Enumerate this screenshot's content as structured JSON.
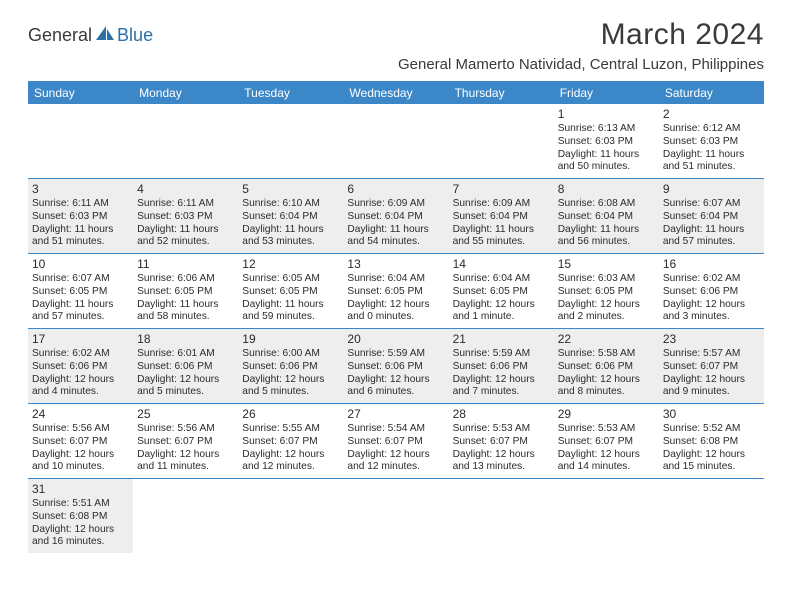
{
  "logo": {
    "text1": "General",
    "text2": "Blue"
  },
  "title": "March 2024",
  "location": "General Mamerto Natividad, Central Luzon, Philippines",
  "header_bg": "#3c87c7",
  "shade_bg": "#eeeeee",
  "border_color": "#3c87c7",
  "weekdays": [
    "Sunday",
    "Monday",
    "Tuesday",
    "Wednesday",
    "Thursday",
    "Friday",
    "Saturday"
  ],
  "weeks": [
    [
      {
        "blank": true
      },
      {
        "blank": true
      },
      {
        "blank": true
      },
      {
        "blank": true
      },
      {
        "blank": true
      },
      {
        "day": "1",
        "sunrise": "Sunrise: 6:13 AM",
        "sunset": "Sunset: 6:03 PM",
        "daylight": "Daylight: 11 hours and 50 minutes."
      },
      {
        "day": "2",
        "sunrise": "Sunrise: 6:12 AM",
        "sunset": "Sunset: 6:03 PM",
        "daylight": "Daylight: 11 hours and 51 minutes."
      }
    ],
    [
      {
        "day": "3",
        "sunrise": "Sunrise: 6:11 AM",
        "sunset": "Sunset: 6:03 PM",
        "daylight": "Daylight: 11 hours and 51 minutes.",
        "shade": true
      },
      {
        "day": "4",
        "sunrise": "Sunrise: 6:11 AM",
        "sunset": "Sunset: 6:03 PM",
        "daylight": "Daylight: 11 hours and 52 minutes.",
        "shade": true
      },
      {
        "day": "5",
        "sunrise": "Sunrise: 6:10 AM",
        "sunset": "Sunset: 6:04 PM",
        "daylight": "Daylight: 11 hours and 53 minutes.",
        "shade": true
      },
      {
        "day": "6",
        "sunrise": "Sunrise: 6:09 AM",
        "sunset": "Sunset: 6:04 PM",
        "daylight": "Daylight: 11 hours and 54 minutes.",
        "shade": true
      },
      {
        "day": "7",
        "sunrise": "Sunrise: 6:09 AM",
        "sunset": "Sunset: 6:04 PM",
        "daylight": "Daylight: 11 hours and 55 minutes.",
        "shade": true
      },
      {
        "day": "8",
        "sunrise": "Sunrise: 6:08 AM",
        "sunset": "Sunset: 6:04 PM",
        "daylight": "Daylight: 11 hours and 56 minutes.",
        "shade": true
      },
      {
        "day": "9",
        "sunrise": "Sunrise: 6:07 AM",
        "sunset": "Sunset: 6:04 PM",
        "daylight": "Daylight: 11 hours and 57 minutes.",
        "shade": true
      }
    ],
    [
      {
        "day": "10",
        "sunrise": "Sunrise: 6:07 AM",
        "sunset": "Sunset: 6:05 PM",
        "daylight": "Daylight: 11 hours and 57 minutes."
      },
      {
        "day": "11",
        "sunrise": "Sunrise: 6:06 AM",
        "sunset": "Sunset: 6:05 PM",
        "daylight": "Daylight: 11 hours and 58 minutes."
      },
      {
        "day": "12",
        "sunrise": "Sunrise: 6:05 AM",
        "sunset": "Sunset: 6:05 PM",
        "daylight": "Daylight: 11 hours and 59 minutes."
      },
      {
        "day": "13",
        "sunrise": "Sunrise: 6:04 AM",
        "sunset": "Sunset: 6:05 PM",
        "daylight": "Daylight: 12 hours and 0 minutes."
      },
      {
        "day": "14",
        "sunrise": "Sunrise: 6:04 AM",
        "sunset": "Sunset: 6:05 PM",
        "daylight": "Daylight: 12 hours and 1 minute."
      },
      {
        "day": "15",
        "sunrise": "Sunrise: 6:03 AM",
        "sunset": "Sunset: 6:05 PM",
        "daylight": "Daylight: 12 hours and 2 minutes."
      },
      {
        "day": "16",
        "sunrise": "Sunrise: 6:02 AM",
        "sunset": "Sunset: 6:06 PM",
        "daylight": "Daylight: 12 hours and 3 minutes."
      }
    ],
    [
      {
        "day": "17",
        "sunrise": "Sunrise: 6:02 AM",
        "sunset": "Sunset: 6:06 PM",
        "daylight": "Daylight: 12 hours and 4 minutes.",
        "shade": true
      },
      {
        "day": "18",
        "sunrise": "Sunrise: 6:01 AM",
        "sunset": "Sunset: 6:06 PM",
        "daylight": "Daylight: 12 hours and 5 minutes.",
        "shade": true
      },
      {
        "day": "19",
        "sunrise": "Sunrise: 6:00 AM",
        "sunset": "Sunset: 6:06 PM",
        "daylight": "Daylight: 12 hours and 5 minutes.",
        "shade": true
      },
      {
        "day": "20",
        "sunrise": "Sunrise: 5:59 AM",
        "sunset": "Sunset: 6:06 PM",
        "daylight": "Daylight: 12 hours and 6 minutes.",
        "shade": true
      },
      {
        "day": "21",
        "sunrise": "Sunrise: 5:59 AM",
        "sunset": "Sunset: 6:06 PM",
        "daylight": "Daylight: 12 hours and 7 minutes.",
        "shade": true
      },
      {
        "day": "22",
        "sunrise": "Sunrise: 5:58 AM",
        "sunset": "Sunset: 6:06 PM",
        "daylight": "Daylight: 12 hours and 8 minutes.",
        "shade": true
      },
      {
        "day": "23",
        "sunrise": "Sunrise: 5:57 AM",
        "sunset": "Sunset: 6:07 PM",
        "daylight": "Daylight: 12 hours and 9 minutes.",
        "shade": true
      }
    ],
    [
      {
        "day": "24",
        "sunrise": "Sunrise: 5:56 AM",
        "sunset": "Sunset: 6:07 PM",
        "daylight": "Daylight: 12 hours and 10 minutes."
      },
      {
        "day": "25",
        "sunrise": "Sunrise: 5:56 AM",
        "sunset": "Sunset: 6:07 PM",
        "daylight": "Daylight: 12 hours and 11 minutes."
      },
      {
        "day": "26",
        "sunrise": "Sunrise: 5:55 AM",
        "sunset": "Sunset: 6:07 PM",
        "daylight": "Daylight: 12 hours and 12 minutes."
      },
      {
        "day": "27",
        "sunrise": "Sunrise: 5:54 AM",
        "sunset": "Sunset: 6:07 PM",
        "daylight": "Daylight: 12 hours and 12 minutes."
      },
      {
        "day": "28",
        "sunrise": "Sunrise: 5:53 AM",
        "sunset": "Sunset: 6:07 PM",
        "daylight": "Daylight: 12 hours and 13 minutes."
      },
      {
        "day": "29",
        "sunrise": "Sunrise: 5:53 AM",
        "sunset": "Sunset: 6:07 PM",
        "daylight": "Daylight: 12 hours and 14 minutes."
      },
      {
        "day": "30",
        "sunrise": "Sunrise: 5:52 AM",
        "sunset": "Sunset: 6:08 PM",
        "daylight": "Daylight: 12 hours and 15 minutes."
      }
    ],
    [
      {
        "day": "31",
        "sunrise": "Sunrise: 5:51 AM",
        "sunset": "Sunset: 6:08 PM",
        "daylight": "Daylight: 12 hours and 16 minutes.",
        "shade": true
      },
      {
        "blank": true
      },
      {
        "blank": true
      },
      {
        "blank": true
      },
      {
        "blank": true
      },
      {
        "blank": true
      },
      {
        "blank": true
      }
    ]
  ]
}
